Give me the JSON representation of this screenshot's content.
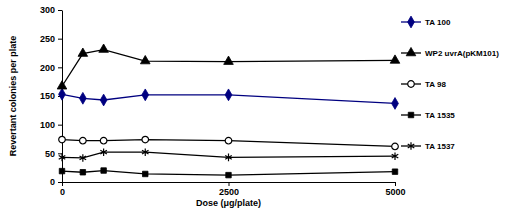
{
  "chart_data": {
    "type": "line",
    "x_label": "Dose (μg/plate)",
    "y_label": "Revertant colonies per plate",
    "x": [
      0,
      313,
      625,
      1250,
      2500,
      5000
    ],
    "series": [
      {
        "name": "TA 100",
        "color": "#000080",
        "marker": "diamond",
        "line_style": "solid",
        "values": [
          153,
          146,
          143,
          152,
          152,
          137
        ]
      },
      {
        "name": "WP2 uvrA(pKM101)",
        "color": "#000000",
        "marker": "triangle",
        "line_style": "solid",
        "values": [
          167,
          224,
          231,
          211,
          210,
          212
        ]
      },
      {
        "name": "TA 98",
        "color": "#000000",
        "marker": "circle-open",
        "line_style": "solid",
        "values": [
          74,
          72,
          72,
          74,
          72,
          62
        ]
      },
      {
        "name": "TA 1535",
        "color": "#000000",
        "marker": "square",
        "line_style": "solid",
        "values": [
          19,
          17,
          20,
          14,
          12,
          18
        ]
      },
      {
        "name": "TA 1537",
        "color": "#000000",
        "marker": "asterisk",
        "line_style": "solid",
        "values": [
          43,
          42,
          52,
          52,
          43,
          45
        ]
      }
    ],
    "xlim": [
      0,
      5000
    ],
    "xticks": [
      0,
      2500,
      5000
    ],
    "ylim": [
      0,
      300
    ],
    "yticks": [
      0,
      50,
      100,
      150,
      200,
      250,
      300
    ],
    "grid": false,
    "legend": "right"
  }
}
